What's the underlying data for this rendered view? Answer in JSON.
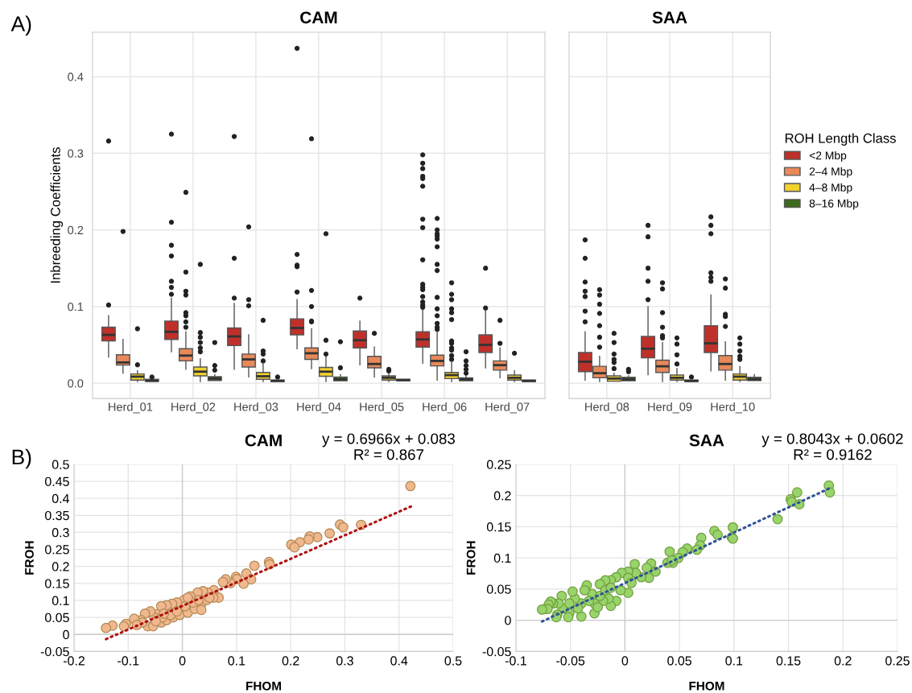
{
  "chart_data": [
    {
      "type": "box",
      "title": "CAM",
      "ylabel": "Inbreeding Coefficients",
      "annotations": [
        "A)"
      ],
      "categories": [
        "Herd_01",
        "Herd_02",
        "Herd_03",
        "Herd_04",
        "Herd_05",
        "Herd_06",
        "Herd_07"
      ],
      "ylim": [
        -0.02,
        0.458
      ],
      "yticks": [
        {
          "value": 0,
          "label": "0.0"
        },
        {
          "value": 0.1,
          "label": "0.1"
        },
        {
          "value": 0.2,
          "label": "0.2"
        },
        {
          "value": 0.3,
          "label": "0.3"
        },
        {
          "value": 0.4,
          "label": "0.4"
        }
      ],
      "grid": true,
      "series": [
        {
          "color": "#c0302b",
          "boxes": [
            {
              "low": 0.034,
              "q1": 0.055,
              "median": 0.063,
              "q3": 0.073,
              "high": 0.088,
              "outliers": [
                0.102,
                0.316
              ]
            },
            {
              "low": 0.041,
              "q1": 0.057,
              "median": 0.067,
              "q3": 0.081,
              "high": 0.111,
              "outliers": [
                0.116,
                0.125,
                0.133,
                0.166,
                0.18,
                0.21,
                0.325
              ]
            },
            {
              "low": 0.018,
              "q1": 0.049,
              "median": 0.061,
              "q3": 0.072,
              "high": 0.104,
              "outliers": [
                0.111,
                0.163,
                0.322
              ]
            },
            {
              "low": 0.045,
              "q1": 0.063,
              "median": 0.072,
              "q3": 0.084,
              "high": 0.109,
              "outliers": [
                0.119,
                0.152,
                0.154,
                0.168,
                0.437
              ]
            },
            {
              "low": 0.024,
              "q1": 0.046,
              "median": 0.056,
              "q3": 0.068,
              "high": 0.081,
              "outliers": [
                0.111
              ]
            },
            {
              "low": 0.026,
              "q1": 0.047,
              "median": 0.057,
              "q3": 0.067,
              "high": 0.095,
              "outliers": [
                0.099,
                0.102,
                0.106,
                0.113,
                0.122,
                0.125,
                0.129,
                0.161,
                0.203,
                0.214,
                0.257,
                0.267,
                0.27,
                0.28,
                0.287,
                0.298
              ]
            },
            {
              "low": 0.02,
              "q1": 0.04,
              "median": 0.05,
              "q3": 0.063,
              "high": 0.094,
              "outliers": [
                0.098,
                0.15
              ]
            }
          ]
        },
        {
          "color": "#e8895a",
          "boxes": [
            {
              "low": 0.013,
              "q1": 0.0235,
              "median": 0.027,
              "q3": 0.037,
              "high": 0.057,
              "outliers": [
                0.198
              ]
            },
            {
              "low": 0.018,
              "q1": 0.029,
              "median": 0.036,
              "q3": 0.045,
              "high": 0.067,
              "outliers": [
                0.073,
                0.08,
                0.088,
                0.092,
                0.115,
                0.12,
                0.145,
                0.249
              ]
            },
            {
              "low": 0.008,
              "q1": 0.021,
              "median": 0.031,
              "q3": 0.038,
              "high": 0.063,
              "outliers": [
                0.101,
                0.109,
                0.204
              ]
            },
            {
              "low": 0.019,
              "q1": 0.031,
              "median": 0.039,
              "q3": 0.046,
              "high": 0.071,
              "outliers": [
                0.08,
                0.081,
                0.1,
                0.121,
                0.319
              ]
            },
            {
              "low": 0.008,
              "q1": 0.02,
              "median": 0.025,
              "q3": 0.035,
              "high": 0.047,
              "outliers": [
                0.065
              ]
            },
            {
              "low": 0.004,
              "q1": 0.0225,
              "median": 0.029,
              "q3": 0.0365,
              "high": 0.066,
              "outliers": [
                0.07,
                0.073,
                0.078,
                0.088,
                0.097,
                0.112,
                0.147,
                0.155,
                0.178,
                0.188,
                0.192,
                0.195,
                0.2,
                0.215
              ]
            },
            {
              "low": 0.007,
              "q1": 0.017,
              "median": 0.0235,
              "q3": 0.029,
              "high": 0.046,
              "outliers": [
                0.052,
                0.082
              ]
            }
          ]
        },
        {
          "color": "#f2d22e",
          "boxes": [
            {
              "low": 0.002,
              "q1": 0.004,
              "median": 0.0085,
              "q3": 0.012,
              "high": 0.016,
              "outliers": [
                0.024,
                0.071
              ]
            },
            {
              "low": 0.002,
              "q1": 0.0095,
              "median": 0.015,
              "q3": 0.021,
              "high": 0.032,
              "outliers": [
                0.041,
                0.046,
                0.053,
                0.06,
                0.066,
                0.155
              ]
            },
            {
              "low": 0.002,
              "q1": 0.005,
              "median": 0.009,
              "q3": 0.014,
              "high": 0.025,
              "outliers": [
                0.029,
                0.038,
                0.042,
                0.082
              ]
            },
            {
              "low": 0.002,
              "q1": 0.009,
              "median": 0.015,
              "q3": 0.0205,
              "high": 0.036,
              "outliers": [
                0.038,
                0.056,
                0.195
              ]
            },
            {
              "low": 0.002,
              "q1": 0.004,
              "median": 0.007,
              "q3": 0.0095,
              "high": 0.013,
              "outliers": [
                0.016,
                0.018
              ]
            },
            {
              "low": 0.002,
              "q1": 0.006,
              "median": 0.0105,
              "q3": 0.014,
              "high": 0.027,
              "outliers": [
                0.031,
                0.036,
                0.043,
                0.046,
                0.052,
                0.055,
                0.083,
                0.092,
                0.097,
                0.109,
                0.116,
                0.131
              ]
            },
            {
              "low": 0.002,
              "q1": 0.004,
              "median": 0.007,
              "q3": 0.0105,
              "high": 0.016,
              "outliers": [
                0.039
              ]
            }
          ]
        },
        {
          "color": "#3d6b1e",
          "boxes": [
            {
              "low": 0.0025,
              "q1": 0.0025,
              "median": 0.003,
              "q3": 0.005,
              "high": 0.005,
              "outliers": [
                0.008
              ]
            },
            {
              "low": 0.0035,
              "q1": 0.0035,
              "median": 0.006,
              "q3": 0.0085,
              "high": 0.011,
              "outliers": [
                0.017,
                0.023,
                0.053
              ]
            },
            {
              "low": 0.002,
              "q1": 0.002,
              "median": 0.003,
              "q3": 0.004,
              "high": 0.004,
              "outliers": [
                0.008
              ]
            },
            {
              "low": 0.003,
              "q1": 0.003,
              "median": 0.005,
              "q3": 0.008,
              "high": 0.011,
              "outliers": [
                0.02,
                0.054
              ]
            },
            {
              "low": 0.003,
              "q1": 0.003,
              "median": 0.004,
              "q3": 0.005,
              "high": 0.005
            },
            {
              "low": 0.003,
              "q1": 0.003,
              "median": 0.005,
              "q3": 0.007,
              "high": 0.01,
              "outliers": [
                0.013,
                0.018,
                0.023,
                0.029,
                0.041
              ]
            },
            {
              "low": 0.002,
              "q1": 0.002,
              "median": 0.003,
              "q3": 0.004,
              "high": 0.004
            }
          ]
        }
      ]
    },
    {
      "type": "box",
      "title": "SAA",
      "legend": "right",
      "legend_title": "ROH Length Class",
      "tick_labels": "x",
      "categories": [
        "Herd_08",
        "Herd_09",
        "Herd_10"
      ],
      "ylim": [
        -0.02,
        0.458
      ],
      "yticks": [
        0,
        0.1,
        0.2,
        0.3,
        0.4
      ],
      "grid": true,
      "series": [
        {
          "name": "<2 Mbp",
          "color": "#c0302b",
          "boxes": [
            {
              "low": 0.004,
              "q1": 0.015,
              "median": 0.028,
              "q3": 0.04,
              "high": 0.067,
              "outliers": [
                0.08,
                0.094,
                0.113,
                0.12,
                0.132,
                0.163,
                0.187
              ]
            },
            {
              "low": 0.011,
              "q1": 0.033,
              "median": 0.045,
              "q3": 0.061,
              "high": 0.1,
              "outliers": [
                0.109,
                0.133,
                0.15,
                0.191,
                0.206
              ]
            },
            {
              "low": 0.016,
              "q1": 0.04,
              "median": 0.052,
              "q3": 0.075,
              "high": 0.115,
              "outliers": [
                0.133,
                0.138,
                0.144,
                0.195,
                0.206,
                0.217
              ]
            }
          ]
        },
        {
          "name": "2–4 Mbp",
          "color": "#e8895a",
          "boxes": [
            {
              "low": 0.002,
              "q1": 0.007,
              "median": 0.013,
              "q3": 0.022,
              "high": 0.035,
              "outliers": [
                0.047,
                0.06,
                0.075,
                0.091,
                0.103,
                0.115,
                0.122
              ]
            },
            {
              "low": 0.002,
              "q1": 0.014,
              "median": 0.022,
              "q3": 0.03,
              "high": 0.053,
              "outliers": [
                0.059,
                0.062,
                0.073,
                0.092,
                0.123,
                0.131
              ]
            },
            {
              "low": 0.004,
              "q1": 0.017,
              "median": 0.025,
              "q3": 0.036,
              "high": 0.054,
              "outliers": [
                0.074,
                0.087,
                0.09,
                0.124,
                0.136
              ]
            }
          ]
        },
        {
          "name": "4–8 Mbp",
          "color": "#f2d22e",
          "boxes": [
            {
              "low": 0.0025,
              "q1": 0.0025,
              "median": 0.006,
              "q3": 0.0095,
              "high": 0.013,
              "outliers": [
                0.019,
                0.027,
                0.031,
                0.038,
                0.053,
                0.065
              ]
            },
            {
              "low": 0.002,
              "q1": 0.004,
              "median": 0.007,
              "q3": 0.0105,
              "high": 0.019,
              "outliers": [
                0.025,
                0.037,
                0.051,
                0.059
              ]
            },
            {
              "low": 0.002,
              "q1": 0.004,
              "median": 0.0085,
              "q3": 0.012,
              "high": 0.022,
              "outliers": [
                0.031,
                0.035,
                0.042,
                0.051,
                0.059
              ]
            }
          ]
        },
        {
          "name": "8–16 Mbp",
          "color": "#3d6b1e",
          "boxes": [
            {
              "low": 0.003,
              "q1": 0.003,
              "median": 0.005,
              "q3": 0.0077,
              "high": 0.0095,
              "outliers": [
                0.015,
                0.018
              ]
            },
            {
              "low": 0.002,
              "q1": 0.002,
              "median": 0.003,
              "q3": 0.004,
              "high": 0.004,
              "outliers": [
                0.008
              ]
            },
            {
              "low": 0.0035,
              "q1": 0.0035,
              "median": 0.005,
              "q3": 0.0077,
              "high": 0.011
            }
          ]
        }
      ]
    },
    {
      "type": "scatter",
      "title": "CAM",
      "xlabel": "FHOM",
      "ylabel": "FROH",
      "annotations": [
        "B)",
        "y = 0.6966x + 0.083",
        "R² = 0.867"
      ],
      "xlim": [
        -0.2,
        0.5
      ],
      "xticks": [
        -0.2,
        -0.1,
        0,
        0.1,
        0.2,
        0.3,
        0.4,
        0.5
      ],
      "ylim": [
        -0.05,
        0.5
      ],
      "yticks": [
        -0.05,
        0,
        0.05,
        0.1,
        0.15,
        0.2,
        0.25,
        0.3,
        0.35,
        0.4,
        0.45,
        0.5
      ],
      "grid": true,
      "series": [
        {
          "type": "scatter",
          "marker": "circle",
          "color": "#f0b88e",
          "x": [
            0.421,
            0.291,
            0.297,
            0.33,
            0.272,
            0.249,
            0.235,
            0.233,
            0.217,
            0.201,
            0.207,
            0.16,
            0.161,
            0.133,
            0.118,
            0.127,
            0.113,
            0.099,
            0.101,
            0.089,
            0.08,
            0.075,
            0.067,
            0.058,
            0.057,
            0.047,
            0.038,
            0.028,
            0.015,
            0.003,
            -0.024,
            -0.044,
            -0.052,
            -0.059,
            -0.069,
            -0.076,
            -0.089,
            -0.104,
            -0.108,
            -0.129,
            -0.141,
            -0.064,
            -0.054,
            -0.039,
            -0.029,
            -0.017,
            -0.005,
            0.01,
            0.023,
            0.035,
            0.045,
            0.05,
            0.02,
            0.005,
            -0.01,
            -0.019,
            -0.029,
            -0.039,
            -0.022,
            -0.037,
            -0.049,
            -0.074,
            -0.084,
            0.01,
            0.03,
            0.035,
            -0.01,
            -0.034
          ],
          "values": [
            0.436,
            0.323,
            0.315,
            0.322,
            0.297,
            0.286,
            0.288,
            0.279,
            0.271,
            0.264,
            0.256,
            0.213,
            0.206,
            0.202,
            0.179,
            0.162,
            0.149,
            0.169,
            0.163,
            0.151,
            0.162,
            0.154,
            0.108,
            0.13,
            0.108,
            0.123,
            0.127,
            0.123,
            0.112,
            0.101,
            0.068,
            0.061,
            0.05,
            0.068,
            0.061,
            0.042,
            0.046,
            0.031,
            0.024,
            0.026,
            0.019,
            0.024,
            0.024,
            0.035,
            0.042,
            0.05,
            0.057,
            0.064,
            0.075,
            0.09,
            0.101,
            0.108,
            0.094,
            0.083,
            0.094,
            0.09,
            0.086,
            0.083,
            0.057,
            0.05,
            0.039,
            0.035,
            0.028,
            0.108,
            0.101,
            0.072,
            0.068,
            0.061
          ]
        },
        {
          "type": "line",
          "color": "#b01010",
          "line_style": "dotted",
          "x": [
            -0.141,
            0.422
          ],
          "values": [
            -0.014,
            0.376
          ]
        }
      ]
    },
    {
      "type": "scatter",
      "title": "SAA",
      "xlabel": "FHOM",
      "ylabel": "FROH",
      "annotations": [
        "y = 0.8043x + 0.0602",
        "R² = 0.9162"
      ],
      "xlim": [
        -0.1,
        0.25
      ],
      "xticks": [
        -0.1,
        -0.05,
        0,
        0.05,
        0.1,
        0.15,
        0.2,
        0.25
      ],
      "ylim": [
        -0.05,
        0.25
      ],
      "yticks": [
        -0.05,
        0,
        0.05,
        0.1,
        0.15,
        0.2,
        0.25
      ],
      "grid": true,
      "series": [
        {
          "type": "scatter",
          "marker": "circle",
          "color": "#98d46a",
          "x": [
            0.187,
            0.188,
            0.158,
            0.152,
            0.153,
            0.16,
            0.14,
            0.099,
            0.082,
            0.085,
            0.098,
            0.099,
            0.07,
            0.069,
            0.066,
            0.057,
            0.053,
            0.049,
            0.041,
            0.044,
            0.039,
            0.043,
            0.024,
            0.009,
            0.02,
            0.028,
            0.022,
            0.015,
            0.01,
            0.003,
            -0.003,
            0.003,
            0.006,
            0.003,
            -0.004,
            -0.008,
            -0.013,
            -0.018,
            -0.023,
            -0.008,
            -0.013,
            -0.015,
            -0.02,
            -0.028,
            -0.03,
            -0.035,
            -0.037,
            -0.04,
            -0.04,
            -0.046,
            -0.048,
            -0.051,
            -0.052,
            -0.058,
            -0.057,
            -0.062,
            -0.063,
            -0.061,
            -0.066,
            -0.068,
            -0.07,
            -0.071,
            -0.076,
            -0.028,
            -0.023,
            -0.018,
            -0.013,
            -0.043,
            -0.051,
            -0.033,
            -0.025
          ],
          "values": [
            0.216,
            0.205,
            0.205,
            0.194,
            0.19,
            0.186,
            0.162,
            0.149,
            0.143,
            0.137,
            0.133,
            0.131,
            0.132,
            0.12,
            0.113,
            0.115,
            0.109,
            0.1,
            0.11,
            0.092,
            0.092,
            0.096,
            0.091,
            0.09,
            0.084,
            0.078,
            0.068,
            0.069,
            0.076,
            0.078,
            0.076,
            0.068,
            0.06,
            0.044,
            0.048,
            0.069,
            0.064,
            0.064,
            0.058,
            0.031,
            0.023,
            0.035,
            0.031,
            0.011,
            0.042,
            0.056,
            0.048,
            0.027,
            0.006,
            0.035,
            0.046,
            0.011,
            0.005,
            0.039,
            0.019,
            0.009,
            0.005,
            0.027,
            0.027,
            0.03,
            0.025,
            0.018,
            0.017,
            0.027,
            0.039,
            0.048,
            0.052,
            0.019,
            0.027,
            0.031,
            0.021
          ]
        },
        {
          "type": "line",
          "color": "#2f5597",
          "line_style": "dotted",
          "x": [
            -0.076,
            0.187
          ],
          "values": [
            -0.002,
            0.211
          ]
        }
      ]
    }
  ]
}
